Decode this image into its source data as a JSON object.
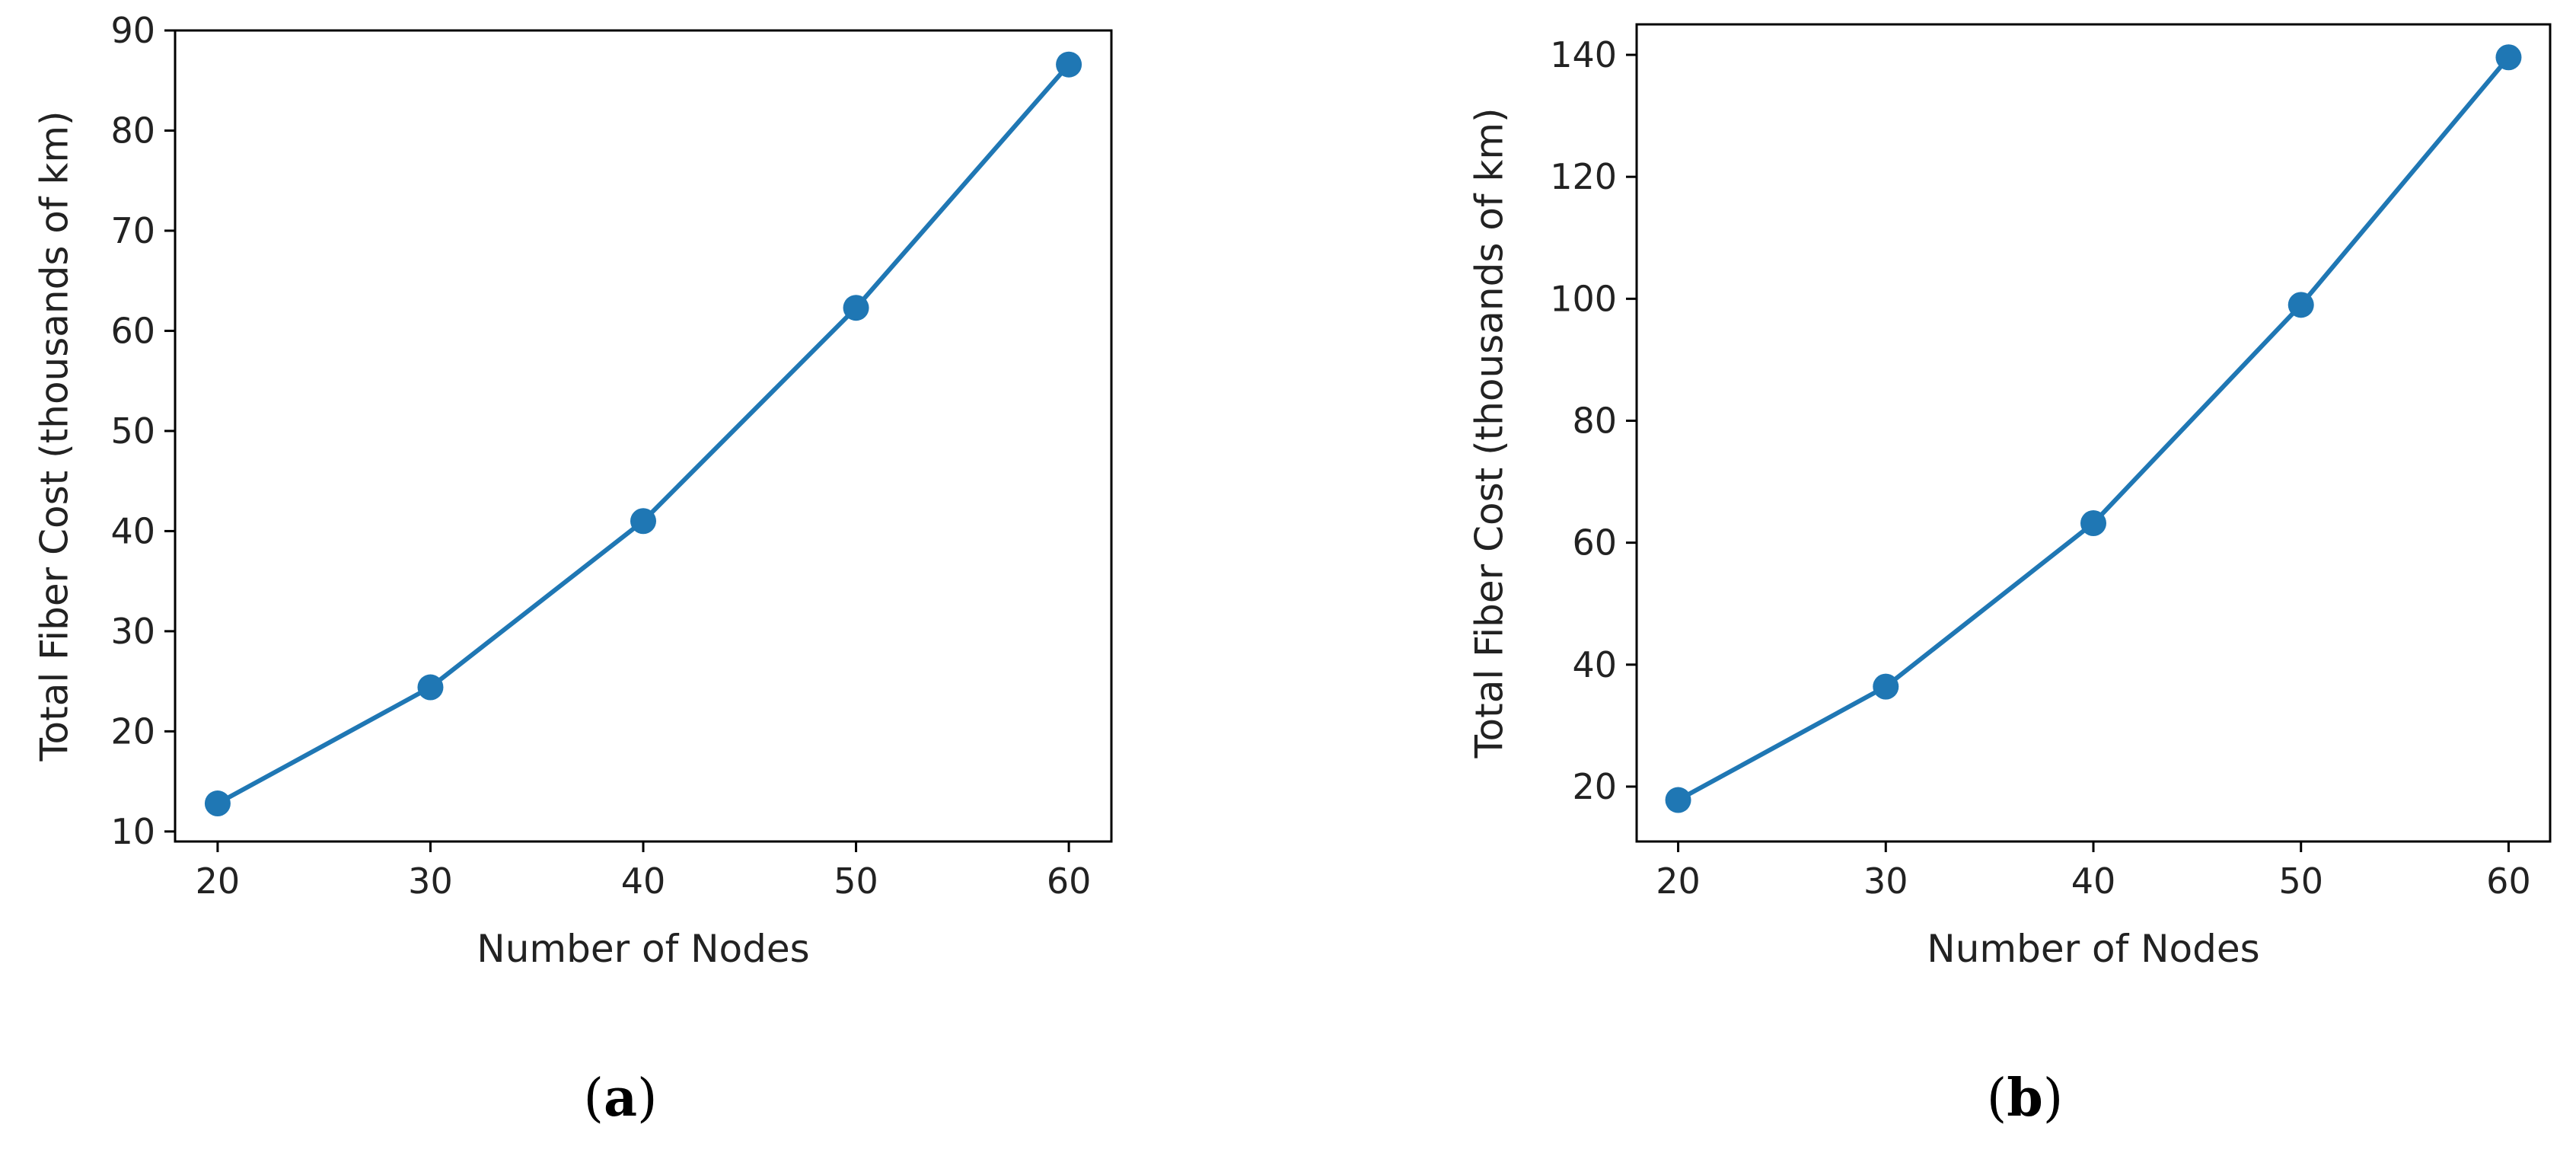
{
  "chart_data": [
    {
      "type": "line",
      "panel": "a",
      "caption": {
        "open": "(",
        "letter": "a",
        "close": ")"
      },
      "x": [
        20,
        30,
        40,
        50,
        60
      ],
      "values": [
        12.8,
        24.4,
        41.0,
        62.3,
        86.6
      ],
      "xlabel": "Number of Nodes",
      "ylabel": "Total Fiber Cost (thousands of km)",
      "xlim": [
        18,
        62
      ],
      "ylim": [
        9,
        90
      ],
      "xticks": [
        20,
        30,
        40,
        50,
        60
      ],
      "yticks": [
        10,
        20,
        30,
        40,
        50,
        60,
        70,
        80,
        90
      ],
      "grid": false,
      "marker": "circle",
      "color": "#1f77b4"
    },
    {
      "type": "line",
      "panel": "b",
      "caption": {
        "open": "(",
        "letter": "b",
        "close": ")"
      },
      "x": [
        20,
        30,
        40,
        50,
        60
      ],
      "values": [
        17.8,
        36.4,
        63.2,
        99.0,
        139.6
      ],
      "xlabel": "Number of Nodes",
      "ylabel": "Total Fiber Cost (thousands of km)",
      "xlim": [
        18,
        62
      ],
      "ylim": [
        11,
        145
      ],
      "xticks": [
        20,
        30,
        40,
        50,
        60
      ],
      "yticks": [
        20,
        40,
        60,
        80,
        100,
        120,
        140
      ],
      "grid": false,
      "marker": "circle",
      "color": "#1f77b4"
    }
  ]
}
